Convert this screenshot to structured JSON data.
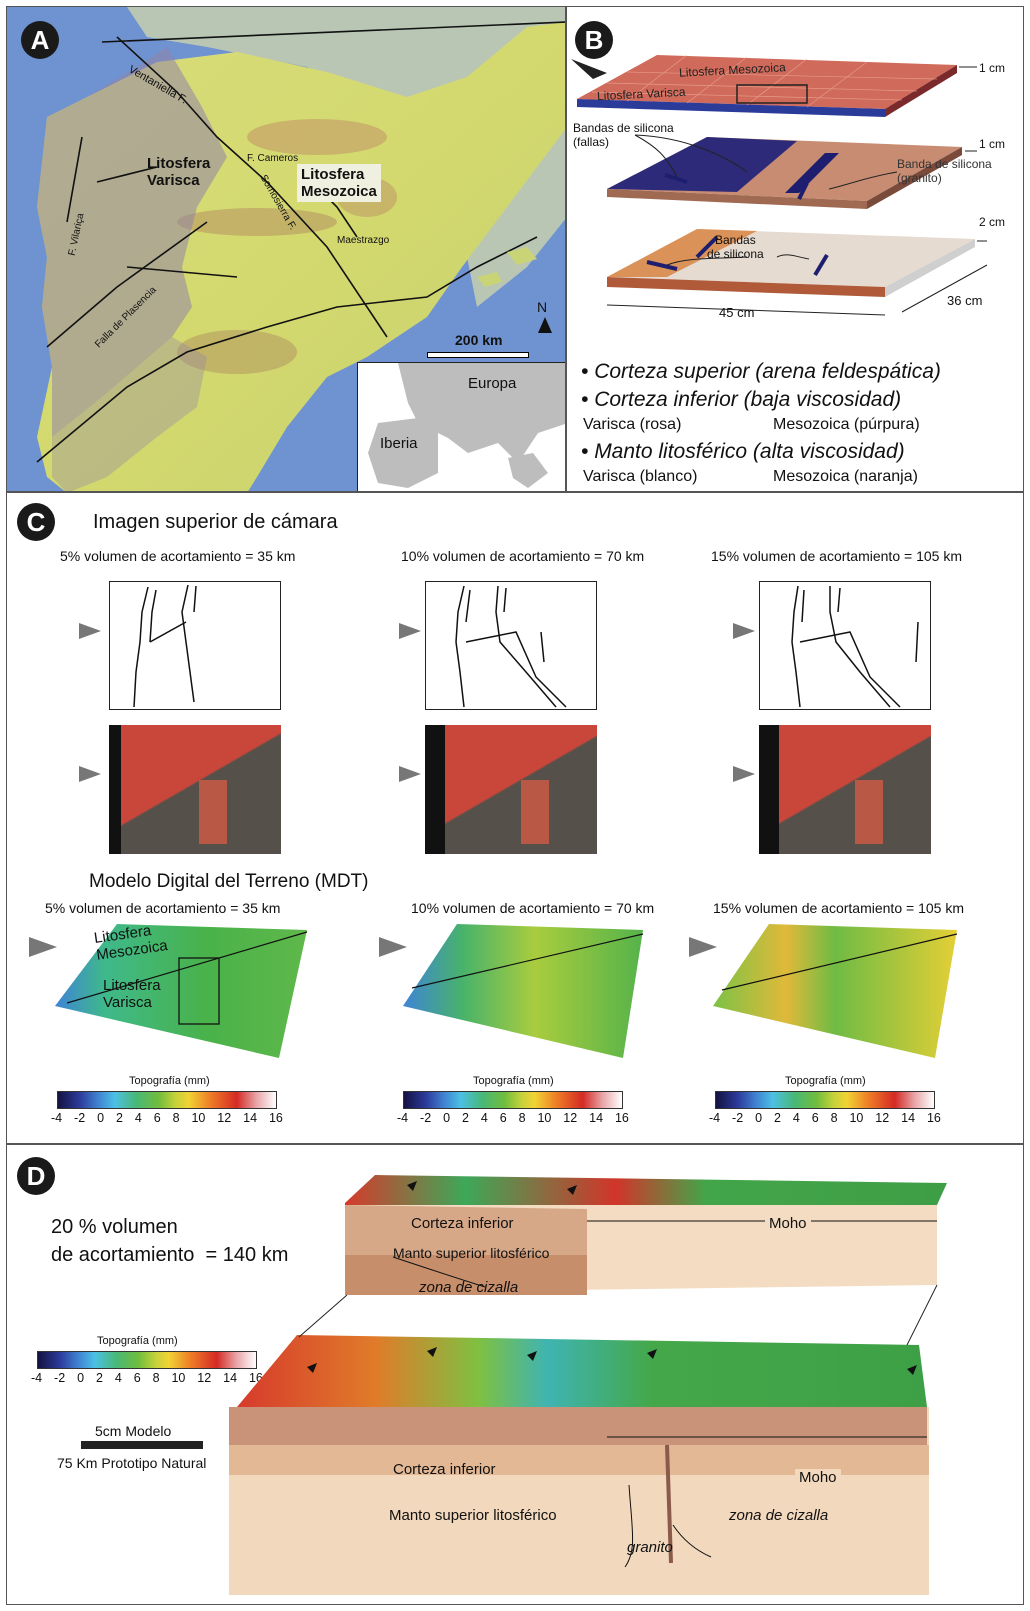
{
  "panels": {
    "a": {
      "badge": "A",
      "labels": {
        "litosfera_varisca": "Litosfera\nVarisca",
        "litosfera_mesozoica": "Litosfera\nMesozoica",
        "ventaniella": "Ventaniella F.",
        "cameros": "F. Cameros",
        "somosierra": "Somosierra F.",
        "maestrazgo": "Maestrazgo",
        "vilarica": "F. Vilariça",
        "plasencia": "Falla de Plasencia",
        "north": "N",
        "scale": "200 km",
        "europa": "Europa",
        "iberia": "Iberia"
      }
    },
    "b": {
      "badge": "B",
      "layer_labels": {
        "meso": "Litosfera Mesozoica",
        "vari": "Litosfera Varisca",
        "bandas_fallas": "Bandas de silicona\n(fallas)",
        "banda_granito": "Banda de silicona\n(granito)",
        "bandas_bottom": "Bandas\nde silicona"
      },
      "dims": {
        "d1": "1 cm",
        "d2": "1 cm",
        "d3": "2 cm",
        "width": "45 cm",
        "depth": "36 cm"
      },
      "legend": {
        "upper": "Corteza superior (arena feldespática)",
        "lower": "Corteza inferior (baja viscosidad)",
        "lower_v": "Varisca (rosa)",
        "lower_m": "Mesozoica (púrpura)",
        "mantle": "Manto litosférico (alta viscosidad)",
        "mantle_v": "Varisca (blanco)",
        "mantle_m": "Mesozoica (naranja)"
      }
    },
    "c": {
      "badge": "C",
      "title_camera": "Imagen superior de cámara",
      "camera_labels": [
        "5% volumen de acortamiento = 35 km",
        "10% volumen de acortamiento = 70 km",
        "15% volumen de acortamiento = 105 km"
      ],
      "title_mdt": "Modelo Digital del Terreno (MDT)",
      "mdt_labels": [
        "5% volumen de acortamiento  = 35 km",
        "10% volumen de acortamiento = 70 km",
        "15% volumen de acortamiento  = 105 km"
      ],
      "mdt_overlay": {
        "meso": "Litosfera\nMesozoica",
        "vari": "Litosfera\nVarisca"
      },
      "colorbar_title": "Topografía (mm)",
      "colorbar_ticks": [
        "-4",
        "-2",
        "0",
        "2",
        "4",
        "6",
        "8",
        "10",
        "12",
        "14",
        "16"
      ]
    },
    "d": {
      "badge": "D",
      "title": "20 % volumen\nde acortamiento  = 140 km",
      "colorbar_title": "Topografía (mm)",
      "colorbar_ticks": [
        "-4",
        "-2",
        "0",
        "2",
        "4",
        "6",
        "8",
        "10",
        "12",
        "14",
        "16"
      ],
      "scale_model": "5cm Modelo",
      "scale_proto": "75 Km Prototipo Natural",
      "upper_block": {
        "corteza": "Corteza  inferior",
        "moho": "Moho",
        "manto": "Manto superior litosférico",
        "cizalla": "zona de cizalla"
      },
      "lower_block": {
        "corteza": "Corteza inferior",
        "moho": "Moho",
        "manto": "Manto superior litosférico",
        "granito": "granito",
        "cizalla": "zona de cizalla"
      }
    }
  }
}
